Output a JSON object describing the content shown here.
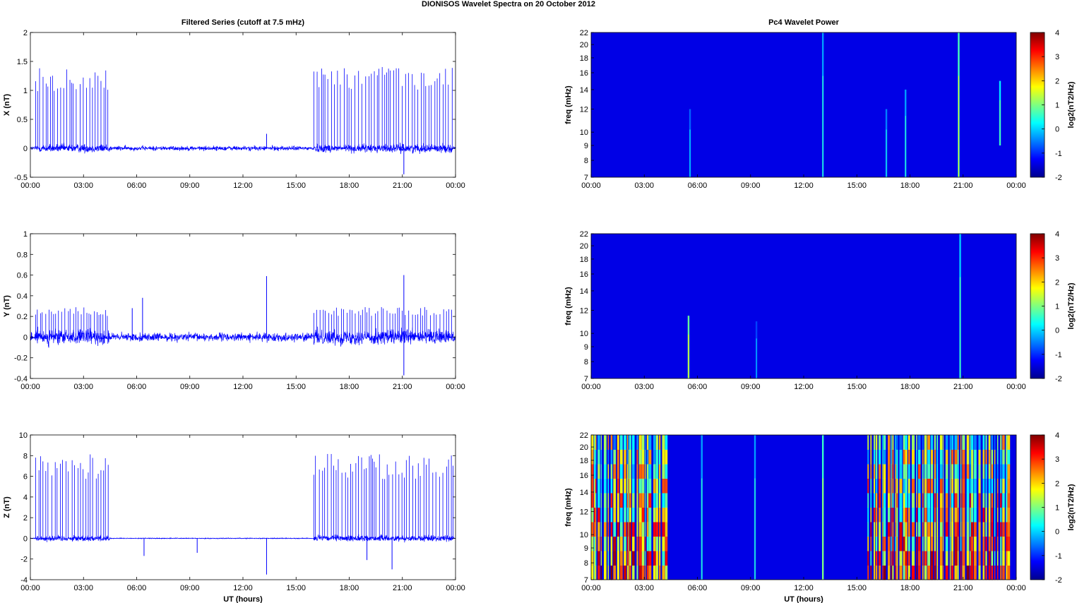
{
  "title": "DIONISOS Wavelet Spectra on 20 October   2012",
  "chart_data": [
    {
      "type": "line",
      "title": "Filtered Series (cutoff at 7.5 mHz)",
      "ylabel": "X (nT)",
      "xlabel": "",
      "xlim": [
        "00:00",
        "00:00"
      ],
      "ylim": [
        -0.5,
        2
      ],
      "x_ticks": [
        "00:00",
        "03:00",
        "06:00",
        "09:00",
        "12:00",
        "15:00",
        "18:00",
        "21:00",
        "00:00"
      ],
      "y_ticks": [
        "-0.5",
        "0",
        "0.5",
        "1",
        "1.5",
        "2"
      ],
      "color": "#0000ff",
      "series": [
        {
          "spike_windows_hours": [
            [
              0.3,
              4.5
            ],
            [
              16.0,
              23.9
            ]
          ],
          "spike_amplitude_typical": 1.2,
          "spike_amplitude_max": 1.5,
          "noise_amplitude": 0.1,
          "notable_events": [
            {
              "x": "13:20",
              "y": 0.25
            },
            {
              "x": "21:05",
              "y": -0.45
            }
          ]
        }
      ]
    },
    {
      "type": "heatmap",
      "title": "Pc4 Wavelet Power",
      "ylabel": "freq (mHz)",
      "xlabel": "",
      "ylim": [
        7,
        22
      ],
      "y_scale": "log",
      "x_ticks": [
        "00:00",
        "03:00",
        "06:00",
        "09:00",
        "12:00",
        "15:00",
        "18:00",
        "21:00",
        "00:00"
      ],
      "y_ticks": [
        "7",
        "8",
        "9",
        "10",
        "12",
        "14",
        "16",
        "18",
        "20",
        "22"
      ],
      "colorbar": {
        "label": "log2(nT2/Hz)",
        "range": [
          -2,
          4
        ],
        "ticks": [
          "-2",
          "-1",
          "0",
          "1",
          "2",
          "3",
          "4"
        ],
        "colormap": "jet"
      },
      "background_level": -2,
      "features": [
        {
          "time": "05:35",
          "fmin": 7,
          "fmax": 12,
          "level": -1.2
        },
        {
          "time": "13:05",
          "fmin": 7,
          "fmax": 22,
          "level": -0.8
        },
        {
          "time": "16:40",
          "fmin": 7,
          "fmax": 12,
          "level": -1.0
        },
        {
          "time": "17:45",
          "fmin": 7,
          "fmax": 14,
          "level": -0.8
        },
        {
          "time": "20:45",
          "fmin": 7,
          "fmax": 22,
          "level": 0.3
        },
        {
          "time": "23:05",
          "fmin": 9,
          "fmax": 15,
          "level": -0.3
        }
      ]
    },
    {
      "type": "line",
      "title": "",
      "ylabel": "Y (nT)",
      "xlabel": "",
      "ylim": [
        -0.4,
        1
      ],
      "x_ticks": [
        "00:00",
        "03:00",
        "06:00",
        "09:00",
        "12:00",
        "15:00",
        "18:00",
        "21:00",
        "00:00"
      ],
      "y_ticks": [
        "-0.4",
        "-0.2",
        "0",
        "0.2",
        "0.4",
        "0.6",
        "0.8",
        "1"
      ],
      "color": "#0000ff",
      "series": [
        {
          "spike_windows_hours": [
            [
              0.3,
              4.5
            ],
            [
              16.0,
              23.9
            ]
          ],
          "spike_amplitude_typical": 0.25,
          "noise_amplitude": 0.1,
          "notable_events": [
            {
              "x": "05:45",
              "y": 0.28
            },
            {
              "x": "06:20",
              "y": 0.38
            },
            {
              "x": "13:20",
              "y": 0.59
            },
            {
              "x": "21:05",
              "y": 0.6
            },
            {
              "x": "21:05",
              "y": -0.37
            }
          ]
        }
      ]
    },
    {
      "type": "heatmap",
      "title": "",
      "ylabel": "freq (mHz)",
      "xlabel": "",
      "ylim": [
        7,
        22
      ],
      "y_scale": "log",
      "x_ticks": [
        "00:00",
        "03:00",
        "06:00",
        "09:00",
        "12:00",
        "15:00",
        "18:00",
        "21:00",
        "00:00"
      ],
      "y_ticks": [
        "7",
        "8",
        "9",
        "10",
        "12",
        "14",
        "16",
        "18",
        "20",
        "22"
      ],
      "colorbar": {
        "label": "log2(nT2/Hz)",
        "range": [
          -2,
          4
        ],
        "ticks": [
          "-2",
          "-1",
          "0",
          "1",
          "2",
          "3",
          "4"
        ],
        "colormap": "jet"
      },
      "background_level": -2,
      "features": [
        {
          "time": "05:30",
          "fmin": 7,
          "fmax": 11.5,
          "level": 0.5
        },
        {
          "time": "09:20",
          "fmin": 7,
          "fmax": 11,
          "level": -1.4
        },
        {
          "time": "20:50",
          "fmin": 7,
          "fmax": 22,
          "level": -0.5
        }
      ]
    },
    {
      "type": "line",
      "title": "",
      "ylabel": "Z (nT)",
      "xlabel": "UT (hours)",
      "ylim": [
        -4,
        10
      ],
      "x_ticks": [
        "00:00",
        "03:00",
        "06:00",
        "09:00",
        "12:00",
        "15:00",
        "18:00",
        "21:00",
        "00:00"
      ],
      "y_ticks": [
        "-4",
        "-2",
        "0",
        "2",
        "4",
        "6",
        "8",
        "10"
      ],
      "color": "#0000ff",
      "series": [
        {
          "spike_windows_hours": [
            [
              0.3,
              4.5
            ],
            [
              16.0,
              23.9
            ]
          ],
          "spike_amplitude_typical": 7.0,
          "spike_amplitude_max": 9.0,
          "noise_amplitude": 0.4,
          "notable_events": [
            {
              "x": "06:25",
              "y": -1.7
            },
            {
              "x": "09:25",
              "y": -1.4
            },
            {
              "x": "13:20",
              "y": -3.5
            },
            {
              "x": "19:00",
              "y": -2.1
            },
            {
              "x": "20:25",
              "y": -3.0
            }
          ]
        }
      ]
    },
    {
      "type": "heatmap",
      "title": "",
      "ylabel": "freq (mHz)",
      "xlabel": "UT (hours)",
      "ylim": [
        7,
        22
      ],
      "y_scale": "log",
      "x_ticks": [
        "00:00",
        "03:00",
        "06:00",
        "09:00",
        "12:00",
        "15:00",
        "18:00",
        "21:00",
        "00:00"
      ],
      "y_ticks": [
        "7",
        "8",
        "9",
        "10",
        "12",
        "14",
        "16",
        "18",
        "20",
        "22"
      ],
      "colorbar": {
        "label": "log2(nT2/Hz)",
        "range": [
          -2,
          4
        ],
        "ticks": [
          "-2",
          "-1",
          "0",
          "1",
          "2",
          "3",
          "4"
        ],
        "colormap": "jet"
      },
      "background_level": -2,
      "active_windows_hours": [
        [
          0.0,
          4.3
        ],
        [
          15.6,
          23.6
        ]
      ],
      "features": [
        {
          "time": "06:15",
          "fmin": 7,
          "fmax": 22,
          "level": -0.8
        },
        {
          "time": "09:15",
          "fmin": 7,
          "fmax": 22,
          "level": -0.8
        },
        {
          "time": "13:05",
          "fmin": 7,
          "fmax": 22,
          "level": 0.2
        }
      ]
    }
  ]
}
